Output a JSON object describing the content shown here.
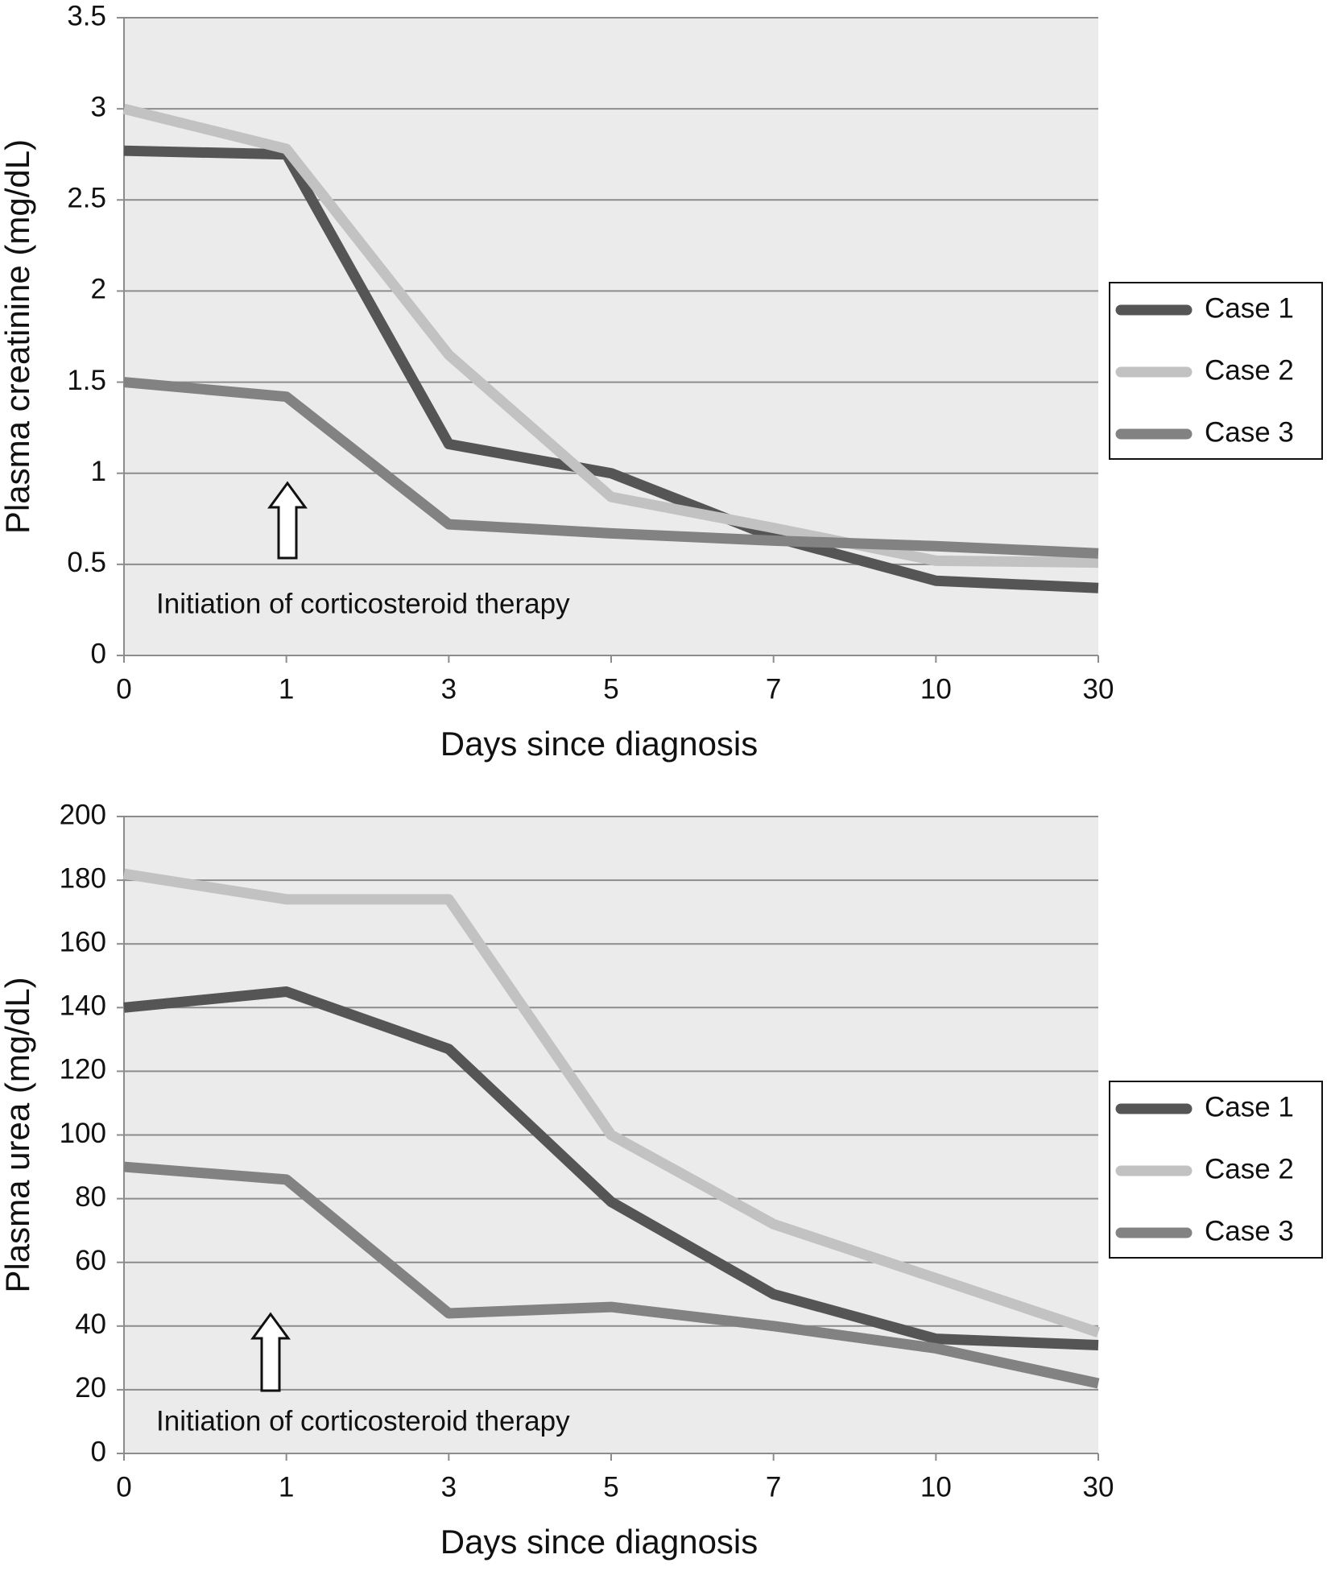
{
  "chart_data": [
    {
      "type": "line",
      "y_label": "Plasma creatinine (mg/dL)",
      "x_label": "Days since diagnosis",
      "annotation": "Initiation of corticosteroid therapy",
      "categories": [
        "0",
        "1",
        "3",
        "5",
        "7",
        "10",
        "30"
      ],
      "series": [
        {
          "name": "Case 1",
          "color": "#555555",
          "values": [
            2.77,
            2.75,
            1.16,
            1.0,
            0.65,
            0.41,
            0.37
          ]
        },
        {
          "name": "Case 2",
          "color": "#c2c2c2",
          "values": [
            3.0,
            2.78,
            1.65,
            0.87,
            0.7,
            0.52,
            0.51
          ]
        },
        {
          "name": "Case 3",
          "color": "#828282",
          "values": [
            1.5,
            1.42,
            0.72,
            0.67,
            0.63,
            0.6,
            0.56
          ]
        }
      ],
      "ylim": [
        0,
        3.5
      ],
      "yticks": [
        0,
        0.5,
        1,
        1.5,
        2,
        2.5,
        3,
        3.5
      ],
      "grid": true,
      "legend": "right"
    },
    {
      "type": "line",
      "y_label": "Plasma urea (mg/dL)",
      "x_label": "Days since diagnosis",
      "annotation": "Initiation of corticosteroid therapy",
      "categories": [
        "0",
        "1",
        "3",
        "5",
        "7",
        "10",
        "30"
      ],
      "series": [
        {
          "name": "Case 1",
          "color": "#555555",
          "values": [
            140,
            145,
            127,
            79,
            50,
            36,
            34
          ]
        },
        {
          "name": "Case 2",
          "color": "#c2c2c2",
          "values": [
            182,
            174,
            174,
            100,
            72,
            55,
            38
          ]
        },
        {
          "name": "Case 3",
          "color": "#828282",
          "values": [
            90,
            86,
            44,
            46,
            40,
            33,
            22
          ]
        }
      ],
      "ylim": [
        0,
        200
      ],
      "yticks": [
        0,
        20,
        40,
        60,
        80,
        100,
        120,
        140,
        160,
        180,
        200
      ],
      "grid": true,
      "legend": "right"
    }
  ]
}
